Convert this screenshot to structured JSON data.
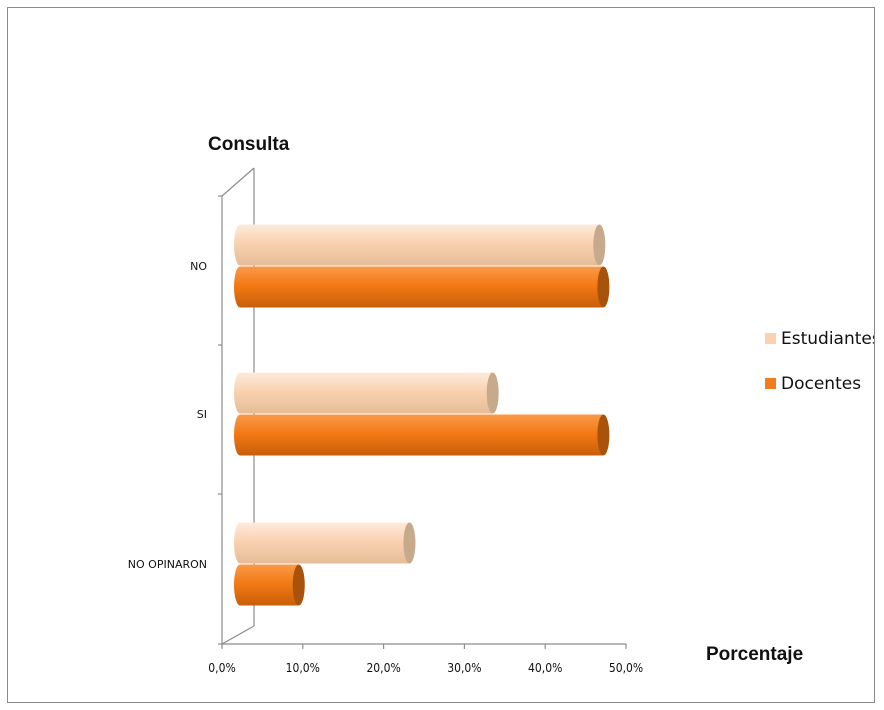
{
  "chart_data": {
    "type": "bar",
    "orientation": "horizontal",
    "categories": [
      "NO",
      "SI",
      "NO OPINARON"
    ],
    "series": [
      {
        "name": "Estudiantes",
        "values": [
          46.7,
          33.5,
          23.2
        ],
        "color": "#FAD2B0"
      },
      {
        "name": "Docentes",
        "values": [
          47.2,
          47.2,
          9.5
        ],
        "color": "#F07D1E"
      }
    ],
    "xlim": [
      0,
      50
    ],
    "x_ticks": [
      "0,0%",
      "10,0%",
      "20,0%",
      "30,0%",
      "40,0%",
      "50,0%"
    ],
    "xlabel": "Porcentaje",
    "ylabel": "Consulta",
    "legend": "right",
    "grid": false
  }
}
